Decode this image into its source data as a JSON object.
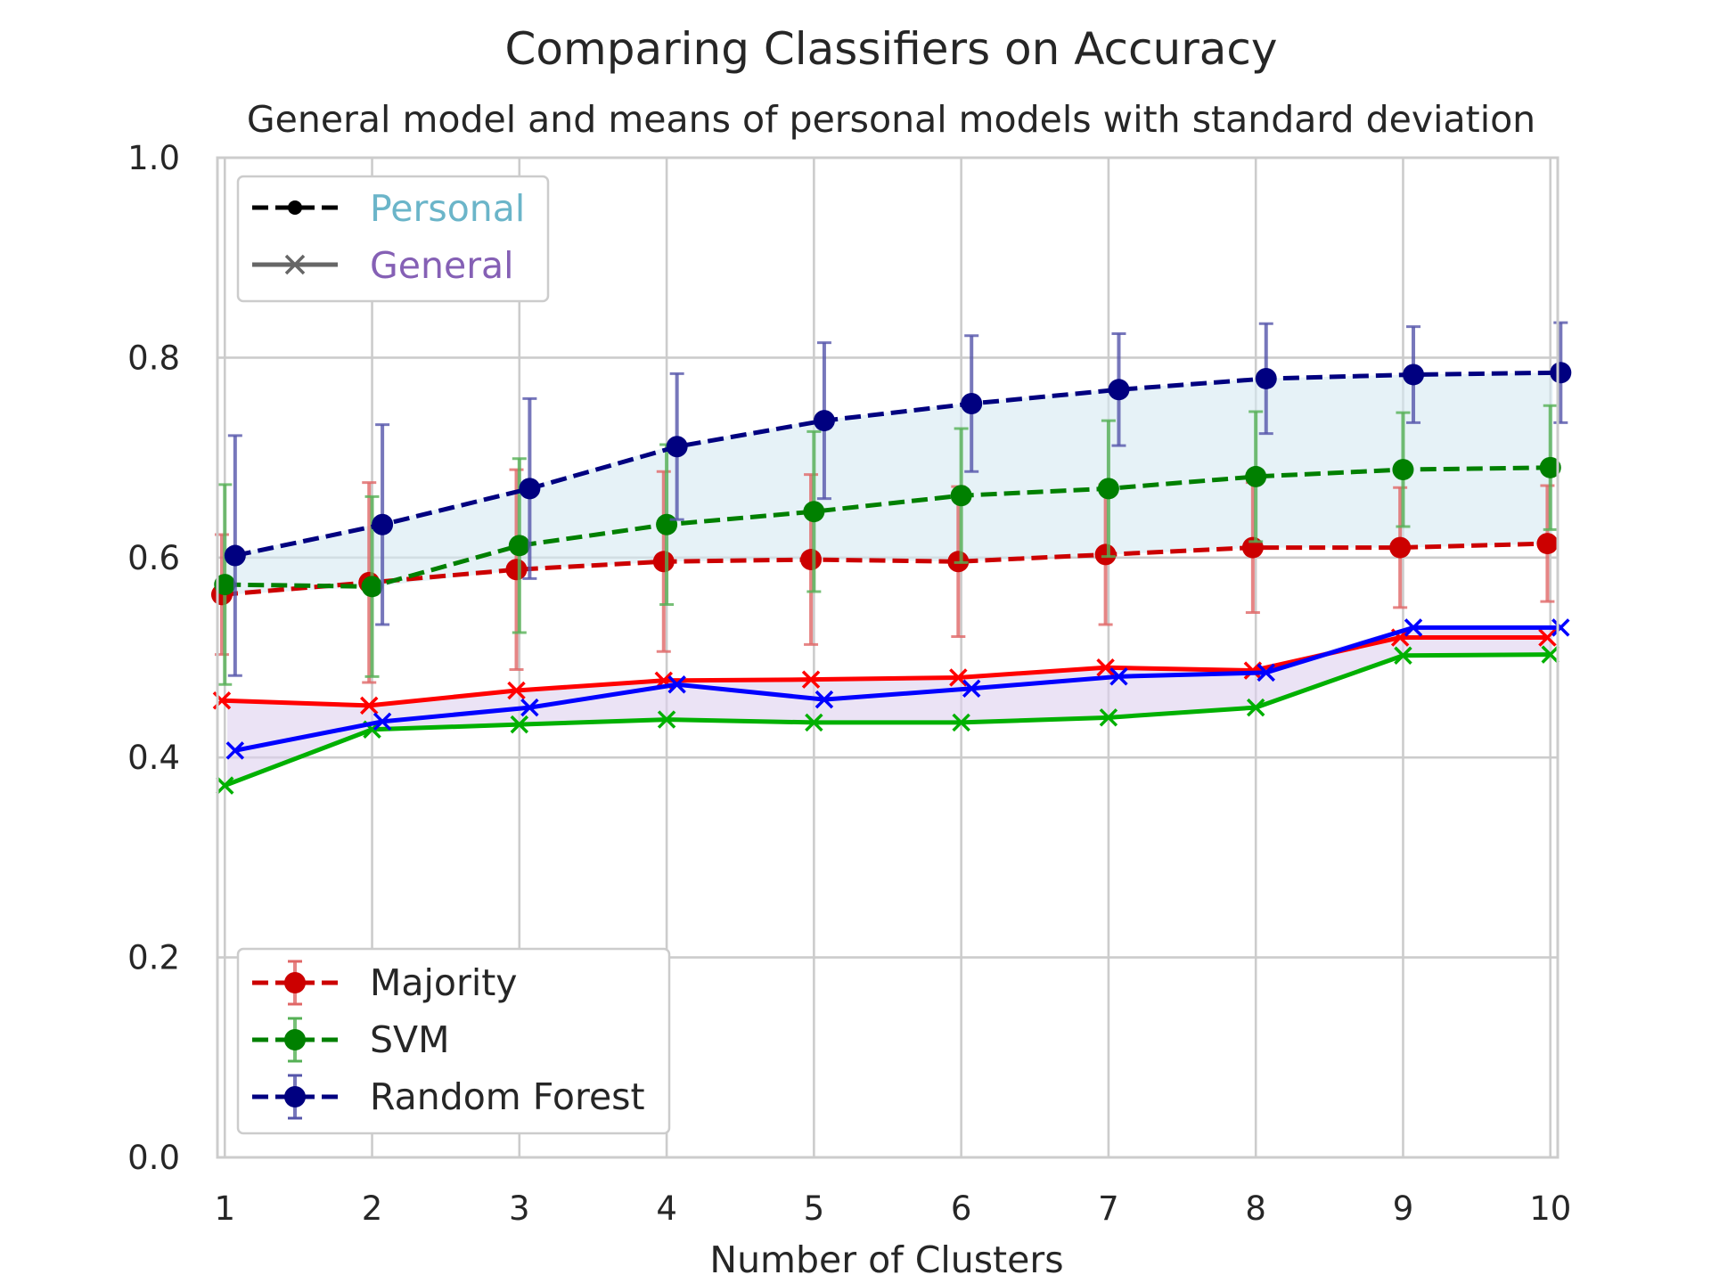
{
  "chart_data": {
    "type": "line",
    "title": "Comparing Classifiers on Accuracy",
    "subtitle": "General model and means of personal models with standard deviation",
    "xlabel": "Number of Clusters",
    "ylabel": "",
    "x": [
      1,
      2,
      3,
      4,
      5,
      6,
      7,
      8,
      9,
      10
    ],
    "x_ticks": [
      "1",
      "2",
      "3",
      "4",
      "5",
      "6",
      "7",
      "8",
      "9",
      "10"
    ],
    "xlim": [
      0.95,
      10.05
    ],
    "ylim": [
      0.0,
      1.0
    ],
    "y_ticks": [
      "0.0",
      "0.2",
      "0.4",
      "0.6",
      "0.8",
      "1.0"
    ],
    "grid": true,
    "style_legend": {
      "placement": "top-left",
      "entries": [
        {
          "label": "Personal",
          "color": "#6bb5c9",
          "marker": "dot",
          "line": "dashed"
        },
        {
          "label": "General",
          "color": "#8560b5",
          "marker": "x",
          "line": "solid"
        }
      ]
    },
    "classifier_legend": {
      "placement": "bottom-left",
      "entries": [
        "Majority",
        "SVM",
        "Random Forest"
      ]
    },
    "personal_series": [
      {
        "name": "Majority",
        "color": "#cc0000",
        "err_color": "#e06666",
        "x": [
          0.98,
          1.98,
          2.98,
          3.98,
          4.98,
          5.98,
          6.98,
          7.98,
          8.98,
          9.98
        ],
        "values": [
          0.563,
          0.575,
          0.588,
          0.596,
          0.598,
          0.596,
          0.603,
          0.61,
          0.61,
          0.614
        ],
        "std": [
          0.06,
          0.1,
          0.1,
          0.09,
          0.085,
          0.075,
          0.07,
          0.065,
          0.06,
          0.058
        ]
      },
      {
        "name": "SVM",
        "color": "#008000",
        "err_color": "#55b055",
        "x": [
          1.0,
          2.0,
          3.0,
          4.0,
          5.0,
          6.0,
          7.0,
          8.0,
          9.0,
          10.0
        ],
        "values": [
          0.573,
          0.571,
          0.612,
          0.633,
          0.646,
          0.662,
          0.669,
          0.681,
          0.688,
          0.69
        ],
        "std": [
          0.1,
          0.09,
          0.087,
          0.08,
          0.08,
          0.067,
          0.068,
          0.065,
          0.057,
          0.062
        ]
      },
      {
        "name": "Random Forest",
        "color": "#000080",
        "err_color": "#5555aa",
        "x": [
          1.07,
          2.07,
          3.07,
          4.07,
          5.07,
          6.07,
          7.07,
          8.07,
          9.07,
          10.07
        ],
        "values": [
          0.602,
          0.633,
          0.669,
          0.711,
          0.737,
          0.754,
          0.768,
          0.779,
          0.783,
          0.785
        ],
        "std": [
          0.12,
          0.1,
          0.09,
          0.073,
          0.078,
          0.068,
          0.056,
          0.055,
          0.048,
          0.05
        ]
      }
    ],
    "general_series": [
      {
        "name": "Majority",
        "color": "#ff0000",
        "x": [
          0.98,
          1.98,
          2.98,
          3.98,
          4.98,
          5.98,
          6.98,
          7.98,
          8.98,
          9.98
        ],
        "values": [
          0.457,
          0.452,
          0.467,
          0.477,
          0.478,
          0.48,
          0.49,
          0.487,
          0.52,
          0.52
        ]
      },
      {
        "name": "SVM",
        "color": "#00b000",
        "x": [
          1.0,
          2.0,
          3.0,
          4.0,
          5.0,
          6.0,
          7.0,
          8.0,
          9.0,
          10.0
        ],
        "values": [
          0.372,
          0.428,
          0.433,
          0.438,
          0.435,
          0.435,
          0.44,
          0.45,
          0.502,
          0.503
        ]
      },
      {
        "name": "Random Forest",
        "color": "#0000ff",
        "x": [
          1.07,
          2.07,
          3.07,
          4.07,
          5.07,
          6.07,
          7.07,
          8.07,
          9.07,
          10.07
        ],
        "values": [
          0.407,
          0.436,
          0.45,
          0.473,
          0.458,
          0.469,
          0.481,
          0.485,
          0.53,
          0.53
        ]
      }
    ],
    "shaded_regions": [
      {
        "group": "Personal",
        "color": "#d6e9f2",
        "opacity": 0.6
      },
      {
        "group": "General",
        "color": "#ddd0ef",
        "opacity": 0.6
      }
    ]
  }
}
